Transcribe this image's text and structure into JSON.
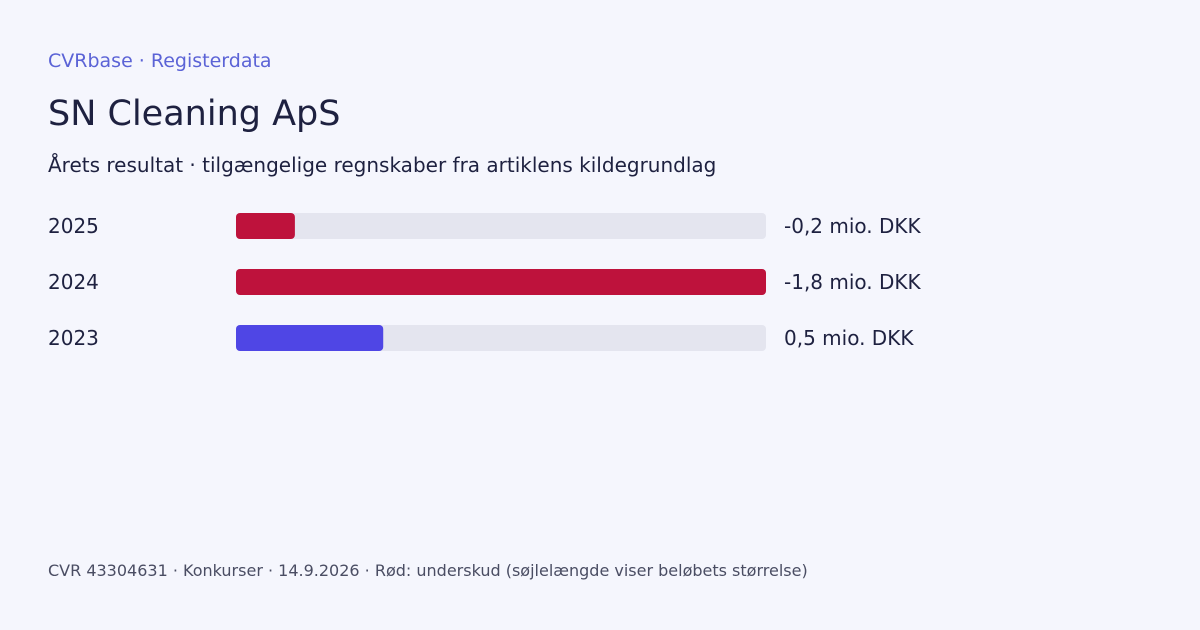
{
  "header": {
    "brand": "CVRbase · Registerdata",
    "title": "SN Cleaning ApS",
    "subtitle": "Årets resultat · tilgængelige regnskaber fra artiklens kildegrundlag"
  },
  "footer": {
    "text": "CVR 43304631 · Konkurser · 14.9.2026 · Rød: underskud (søjlelængde viser beløbets størrelse)"
  },
  "colors": {
    "background": "#f5f6fd",
    "track": "#e4e5ef",
    "negative": "#be123c",
    "positive": "#4f46e5"
  },
  "chart_data": {
    "type": "bar",
    "orientation": "horizontal",
    "categories": [
      "2025",
      "2024",
      "2023"
    ],
    "values": [
      -0.2,
      -1.8,
      0.5
    ],
    "value_labels": [
      "-0,2 mio. DKK",
      "-1,8 mio. DKK",
      "0,5 mio. DKK"
    ],
    "unit": "mio. DKK",
    "scale_max_abs": 1.8,
    "grid": false,
    "legend": "none"
  }
}
